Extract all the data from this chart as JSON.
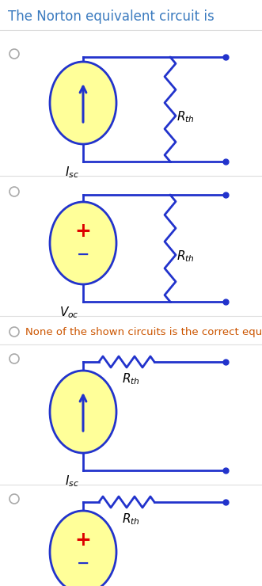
{
  "title": "The Norton equivalent circuit is",
  "title_color": "#3a7abf",
  "bg_color": "#ffffff",
  "cc": "#2233cc",
  "yf": "#ffff99",
  "rc": "#dd0000",
  "none_text": "None of the shown circuits is the correct equivalent",
  "none_color": "#cc5500",
  "radio_color": "#aaaaaa",
  "figw": 3.31,
  "figh": 7.4,
  "dpi": 100
}
